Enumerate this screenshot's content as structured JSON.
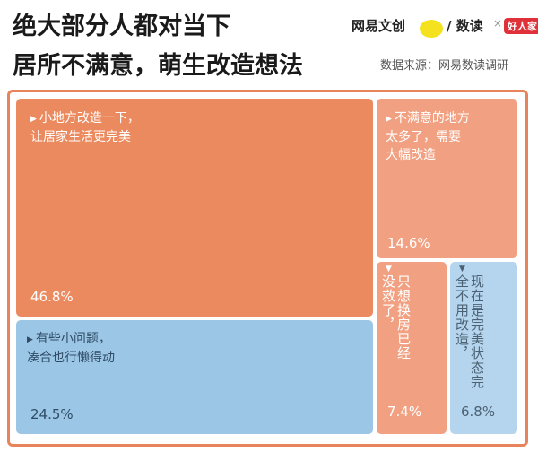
{
  "title": {
    "line1": "绝大部分人都对当下",
    "line2": "居所不满意，萌生改造想法"
  },
  "brand": {
    "part1": "网易文创",
    "part2": "/ 数读",
    "part3": "×",
    "part4": "好人家"
  },
  "source": "数据来源：网易数读调研",
  "colors": {
    "orange_dark": "#ec8a5f",
    "orange_light": "#f1a182",
    "blue_dark": "#9cc6e5",
    "blue_light": "#b5d5ee",
    "frame": "#e8845c"
  },
  "chart_data": {
    "type": "treemap",
    "items": [
      {
        "label": "小地方改造一下，让居家生活更完美",
        "line1": "小地方改造一下，",
        "line2": "让居家生活更完美",
        "value": 46.8,
        "value_label": "46.8%"
      },
      {
        "label": "有些小问题，凑合也行懒得动",
        "line1": "有些小问题，",
        "line2": "凑合也行懒得动",
        "value": 24.5,
        "value_label": "24.5%"
      },
      {
        "label": "不满意的地方太多了，需要大幅改造",
        "line1": "不满意的地方",
        "line2": "太多了，需要",
        "line3": "大幅改造",
        "value": 14.6,
        "value_label": "14.6%"
      },
      {
        "label": "已经没救了，只想换房",
        "col1": "只想换房",
        "col2": "已经没救了，",
        "value": 7.4,
        "value_label": "7.4%"
      },
      {
        "label": "现在是完美状态，完全不用改造",
        "col1": "现在是完美状态",
        "col2": "完全不用改造，",
        "value": 6.8,
        "value_label": "6.8%"
      }
    ]
  }
}
